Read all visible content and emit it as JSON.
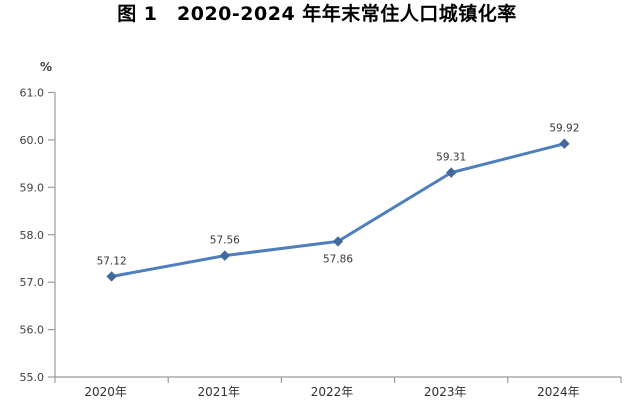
{
  "title": "图 1　2020-2024 年年末常住人口城镇化率",
  "chart_data": {
    "type": "line",
    "title": "图 1　2020-2024 年年末常住人口城镇化率",
    "categories": [
      "2020年",
      "2021年",
      "2022年",
      "2023年",
      "2024年"
    ],
    "values": [
      57.12,
      57.56,
      57.86,
      59.31,
      59.92
    ],
    "labels": [
      "57.12",
      "57.56",
      "57.86",
      "59.31",
      "59.92"
    ],
    "label_positions": [
      "above",
      "above",
      "below",
      "above",
      "above"
    ],
    "y_unit": "%",
    "ylim": [
      55.0,
      61.0
    ],
    "y_ticks": [
      "61.0",
      "60.0",
      "59.0",
      "58.0",
      "57.0",
      "56.0",
      "55.0"
    ],
    "grid": "off",
    "legend": "none",
    "line_color": "#4E7FBC",
    "marker_color": "#44699D",
    "axis_color": "#9B9B9B",
    "tick_label_color": "#3F3F3F"
  }
}
